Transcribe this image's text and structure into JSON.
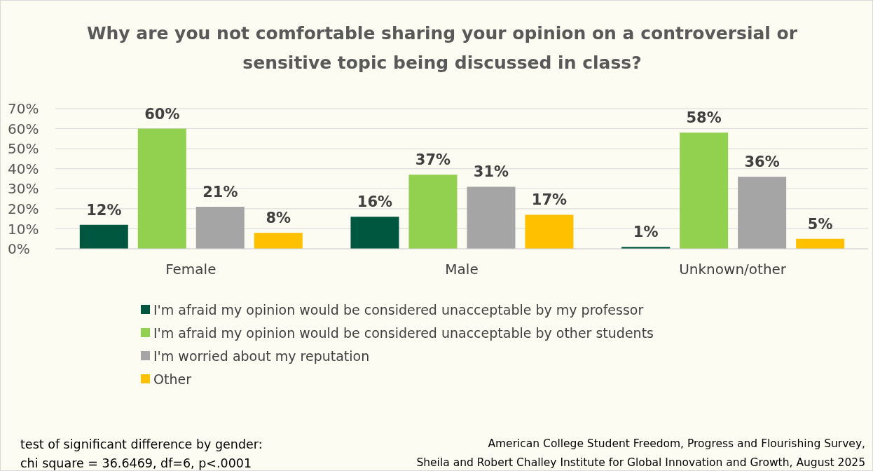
{
  "chart_data": {
    "type": "bar",
    "title": "Why are you not comfortable sharing your opinion on a controversial or sensitive topic being discussed in class?",
    "categories": [
      "Female",
      "Male",
      "Unknown/other"
    ],
    "series": [
      {
        "name": "I'm afraid my opinion would be considered unacceptable by my professor",
        "color": "#00573f",
        "values": [
          12,
          16,
          1
        ],
        "value_labels": [
          "12%",
          "16%",
          "1%"
        ]
      },
      {
        "name": "I'm afraid my opinion would be considered unacceptable by other students",
        "color": "#92d050",
        "values": [
          60,
          37,
          58
        ],
        "value_labels": [
          "60%",
          "37%",
          "58%"
        ]
      },
      {
        "name": "I'm worried about my reputation",
        "color": "#a5a5a5",
        "values": [
          21,
          31,
          36
        ],
        "value_labels": [
          "21%",
          "31%",
          "36%"
        ]
      },
      {
        "name": "Other",
        "color": "#ffc000",
        "values": [
          8,
          17,
          5
        ],
        "value_labels": [
          "8%",
          "17%",
          "5%"
        ]
      }
    ],
    "ylim": [
      0,
      70
    ],
    "yticks": [
      {
        "value": 0,
        "label": "0%"
      },
      {
        "value": 10,
        "label": "10%"
      },
      {
        "value": 20,
        "label": "20%"
      },
      {
        "value": 30,
        "label": "30%"
      },
      {
        "value": 40,
        "label": "40%"
      },
      {
        "value": 50,
        "label": "50%"
      },
      {
        "value": 60,
        "label": "60%"
      },
      {
        "value": 70,
        "label": "70%"
      }
    ],
    "grid": "y",
    "legend": "bottom",
    "annotations": [
      "test of significant difference by gender:\nchi square = 36.6469, df=6, p<.0001",
      "American College Student Freedom, Progress and Flourishing Survey,\nSheila and Robert Challey Institute for Global Innovation and Growth, August 2025"
    ]
  }
}
